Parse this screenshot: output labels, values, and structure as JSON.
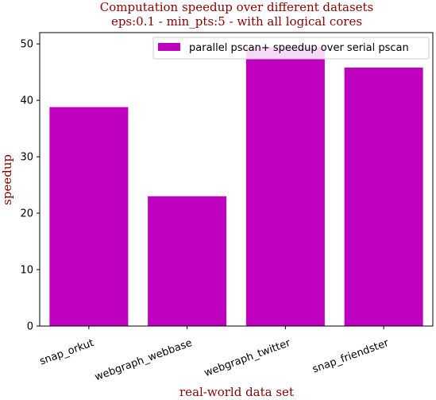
{
  "chart_data": {
    "type": "bar",
    "title_line1": "Computation speedup over different datasets",
    "title_line2": "eps:0.1 - min_pts:5 - with all logical cores",
    "xlabel": "real-world data set",
    "ylabel": "speedup",
    "categories": [
      "snap_orkut",
      "webgraph_webbase",
      "webgraph_twitter",
      "snap_friendster"
    ],
    "series": [
      {
        "name": "parallel pscan+ speedup over serial pscan",
        "values": [
          38.8,
          23.0,
          49.4,
          45.8
        ],
        "color": "#bf00bf"
      }
    ],
    "ylim": [
      0,
      52
    ],
    "yticks": [
      0,
      10,
      20,
      30,
      40,
      50
    ],
    "grid": false,
    "legend_position": "top-right",
    "colors": {
      "title": "#8b0000",
      "axis_label": "#8b0000",
      "bar": "#bf00bf"
    }
  }
}
